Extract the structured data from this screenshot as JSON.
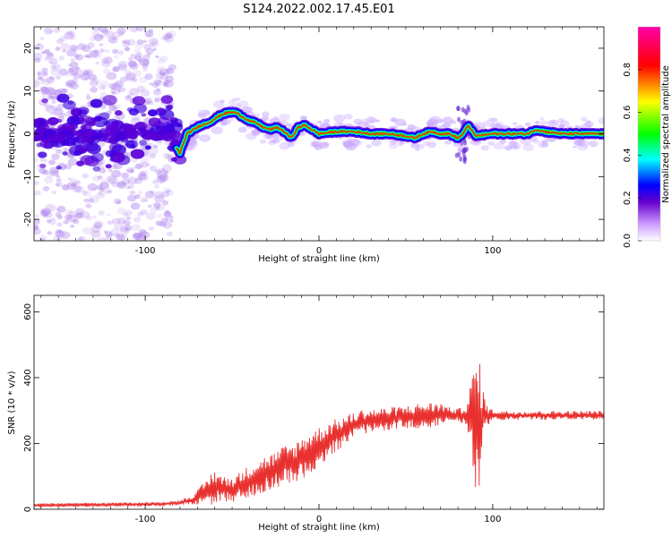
{
  "title": "S124.2022.002.17.45.E01",
  "chart_data": [
    {
      "type": "heatmap",
      "xlabel": "Height of straight line (km)",
      "ylabel": "Frequency (Hz)",
      "xlim": [
        -164,
        164
      ],
      "ylim": [
        -25,
        25
      ],
      "x_ticks": [
        -100,
        0,
        100
      ],
      "x_tick_labels": [
        "-100",
        "0",
        "100"
      ],
      "y_ticks": [
        -20,
        -10,
        0,
        10,
        20
      ],
      "y_tick_labels": [
        "-20",
        "-10",
        "0",
        "10",
        "20"
      ],
      "grid": false,
      "colorbar": {
        "label": "Normalized spectral amplitude",
        "range": [
          0,
          1
        ],
        "ticks": [
          0.0,
          0.2,
          0.4,
          0.6,
          0.8
        ],
        "tick_labels": [
          "0.0",
          "0.2",
          "0.4",
          "0.6",
          "0.8"
        ],
        "colormap": [
          "#ffffff",
          "#6600cc",
          "#0000ff",
          "#00ffff",
          "#00ff00",
          "#ffff00",
          "#ff0000",
          "#ff00aa"
        ]
      },
      "ridge": {
        "description_unit": "Hz",
        "x": [
          -164,
          -150,
          -130,
          -110,
          -95,
          -85,
          -80,
          -76,
          -72,
          -68,
          -64,
          -60,
          -56,
          -52,
          -48,
          -44,
          -40,
          -36,
          -32,
          -28,
          -24,
          -20,
          -16,
          -12,
          -8,
          -4,
          0,
          10,
          20,
          30,
          40,
          50,
          55,
          60,
          65,
          70,
          75,
          80,
          83,
          86,
          90,
          100,
          110,
          120,
          125,
          130,
          140,
          150,
          164
        ],
        "y": [
          0,
          0.5,
          -0.5,
          0.5,
          0,
          -2,
          -4.5,
          0,
          1,
          2,
          2.5,
          3.5,
          4.5,
          5,
          5,
          4,
          3,
          2.5,
          1.5,
          1,
          1.5,
          0.5,
          -1,
          1.5,
          2,
          1,
          0,
          0.5,
          0.5,
          0,
          0,
          -0.5,
          -1,
          0,
          0.5,
          0,
          0,
          -1,
          0,
          2,
          -0.5,
          0,
          0,
          0,
          1,
          0.5,
          0,
          0,
          0
        ]
      }
    },
    {
      "type": "line",
      "xlabel": "Height of straight line (km)",
      "ylabel": "SNR (10 * v/v)",
      "xlim": [
        -164,
        164
      ],
      "ylim": [
        0,
        650
      ],
      "x_ticks": [
        -100,
        0,
        100
      ],
      "x_tick_labels": [
        "-100",
        "0",
        "100"
      ],
      "y_ticks": [
        0,
        200,
        400,
        600
      ],
      "y_tick_labels": [
        "0",
        "200",
        "400",
        "600"
      ],
      "grid": false,
      "color": "#e8302e",
      "envelope": {
        "x": [
          -164,
          -120,
          -90,
          -80,
          -72,
          -65,
          -60,
          -55,
          -50,
          -45,
          -40,
          -35,
          -30,
          -25,
          -20,
          -15,
          -10,
          -5,
          0,
          5,
          10,
          15,
          20,
          25,
          30,
          40,
          50,
          60,
          65,
          70,
          75,
          80,
          85,
          88,
          90,
          92,
          94,
          96,
          100,
          110,
          120,
          130,
          140,
          150,
          164
        ],
        "mean": [
          12,
          14,
          16,
          20,
          30,
          50,
          70,
          60,
          60,
          70,
          85,
          100,
          110,
          120,
          135,
          140,
          155,
          175,
          190,
          210,
          225,
          240,
          255,
          265,
          270,
          275,
          280,
          285,
          285,
          290,
          290,
          285,
          285,
          280,
          260,
          260,
          280,
          285,
          285,
          285,
          285,
          285,
          285,
          285,
          285
        ],
        "amp": [
          6,
          6,
          6,
          8,
          15,
          40,
          55,
          40,
          40,
          45,
          50,
          55,
          55,
          55,
          60,
          60,
          65,
          65,
          60,
          55,
          50,
          45,
          40,
          40,
          35,
          35,
          35,
          40,
          40,
          35,
          20,
          20,
          40,
          120,
          240,
          200,
          120,
          35,
          18,
          14,
          14,
          14,
          14,
          14,
          14
        ]
      }
    }
  ]
}
